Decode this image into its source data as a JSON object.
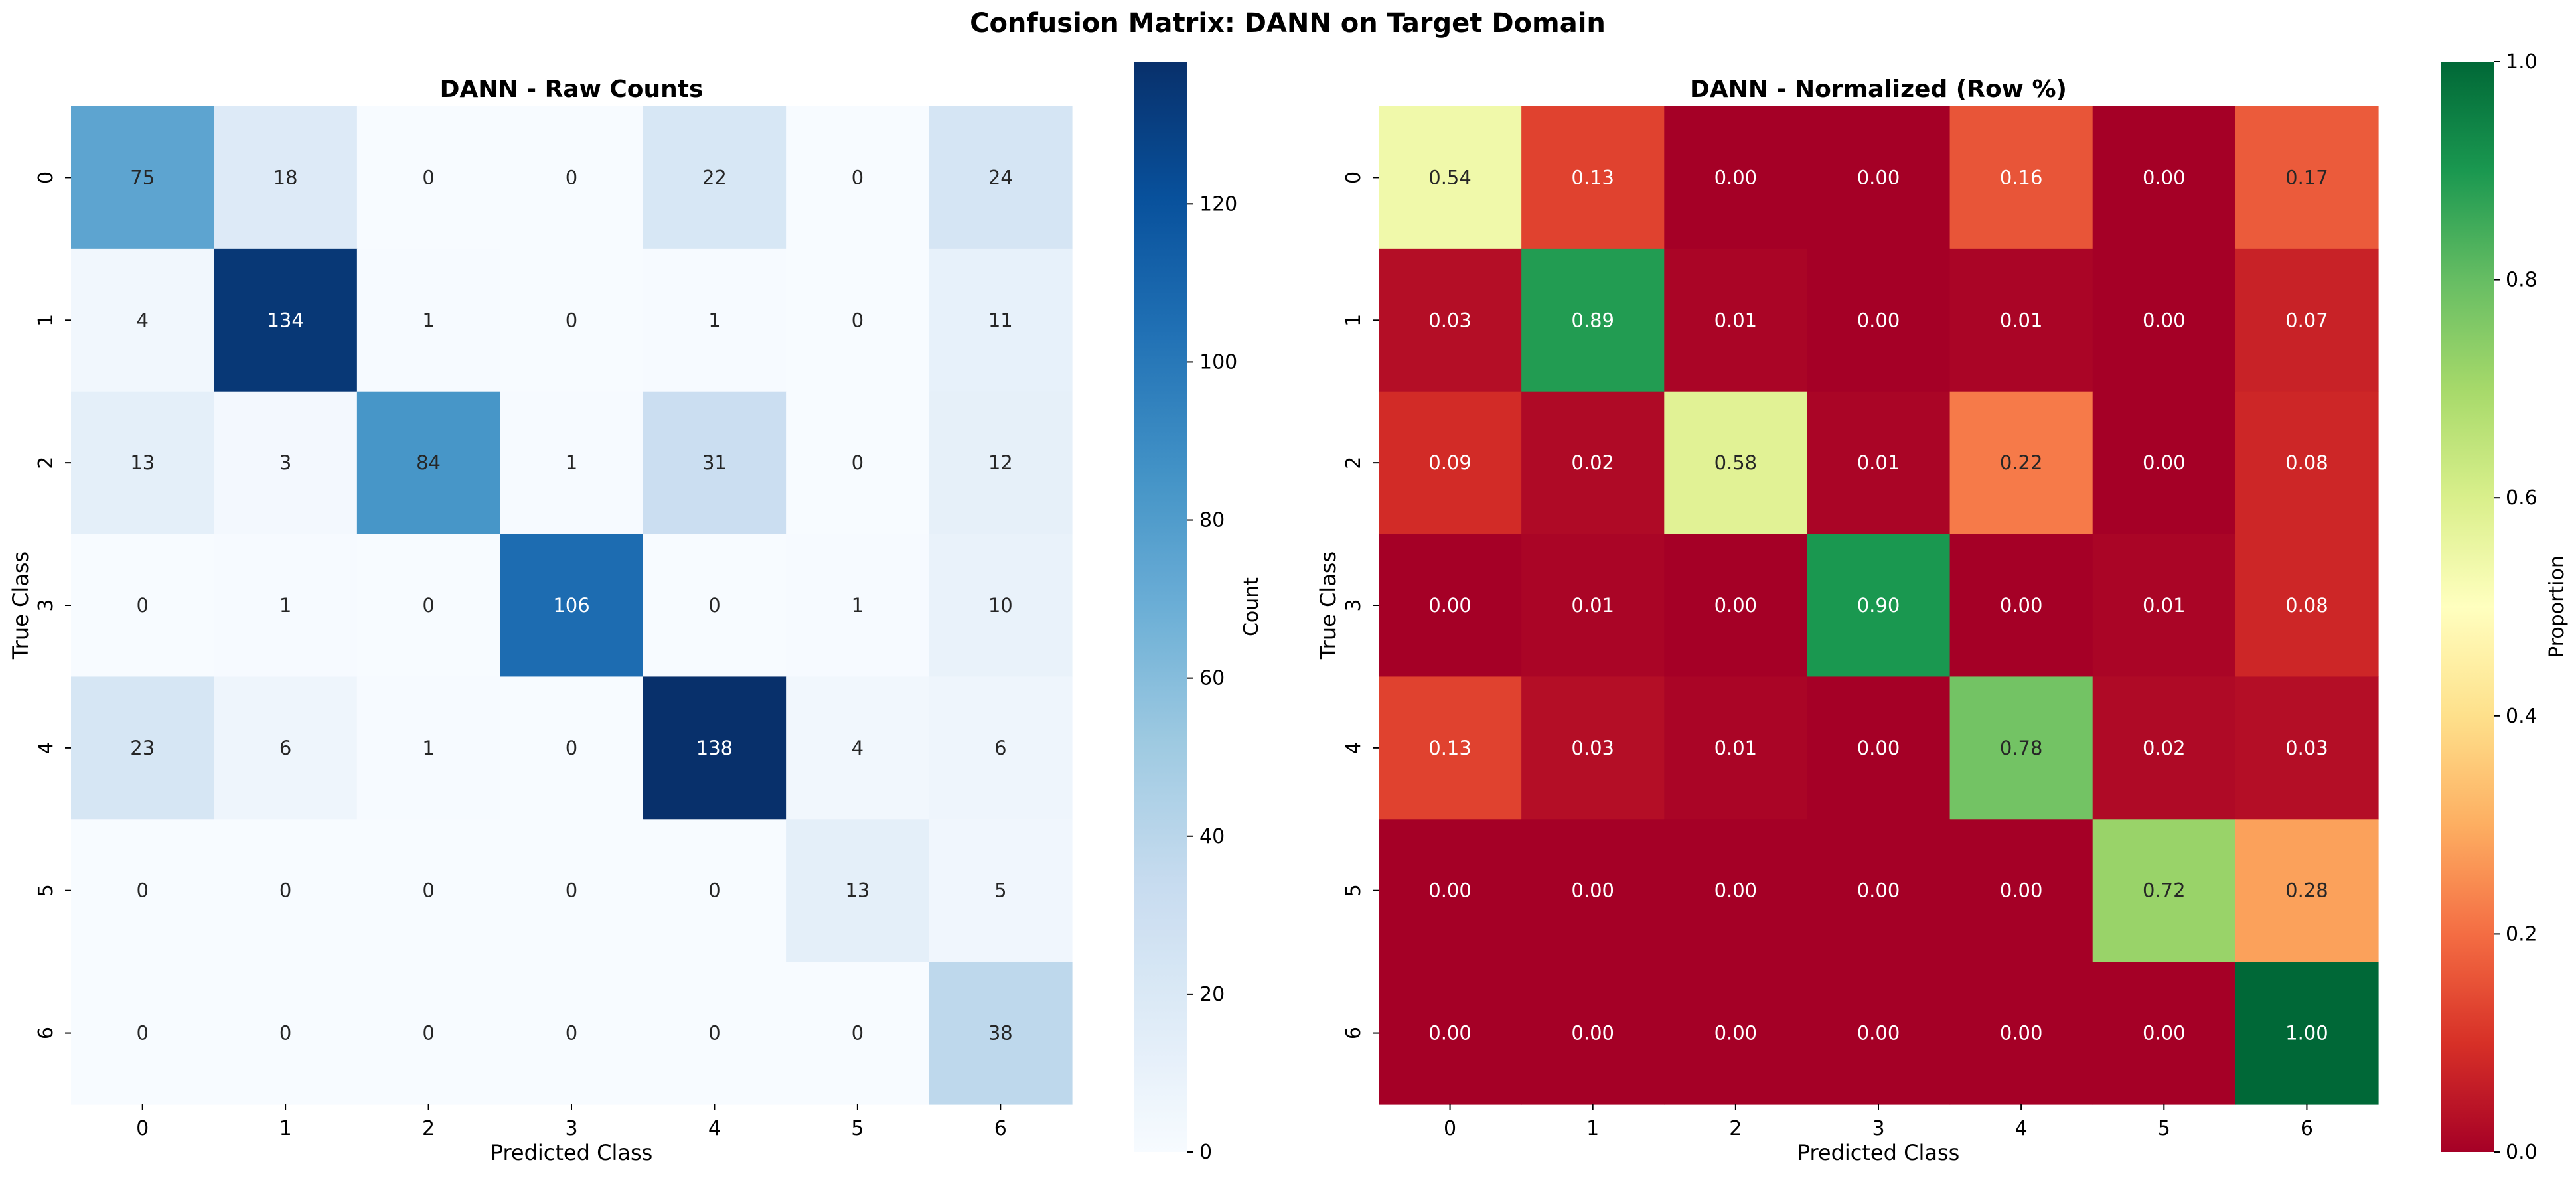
{
  "figure": {
    "title": "Confusion Matrix: DANN on Target Domain"
  },
  "chart_data": [
    {
      "type": "heatmap",
      "title": "DANN - Raw Counts",
      "xlabel": "Predicted Class",
      "ylabel": "True Class",
      "x_categories": [
        "0",
        "1",
        "2",
        "3",
        "4",
        "5",
        "6"
      ],
      "y_categories": [
        "0",
        "1",
        "2",
        "3",
        "4",
        "5",
        "6"
      ],
      "values": [
        [
          75,
          18,
          0,
          0,
          22,
          0,
          24
        ],
        [
          4,
          134,
          1,
          0,
          1,
          0,
          11
        ],
        [
          13,
          3,
          84,
          1,
          31,
          0,
          12
        ],
        [
          0,
          1,
          0,
          106,
          0,
          1,
          10
        ],
        [
          23,
          6,
          1,
          0,
          138,
          4,
          6
        ],
        [
          0,
          0,
          0,
          0,
          0,
          13,
          5
        ],
        [
          0,
          0,
          0,
          0,
          0,
          0,
          38
        ]
      ],
      "value_format": "integer",
      "colormap": "Blues",
      "vmin": 0,
      "vmax": 138,
      "colorbar": {
        "label": "Count",
        "ticks": [
          0,
          20,
          40,
          60,
          80,
          100,
          120
        ],
        "tick_labels": [
          "0",
          "20",
          "40",
          "60",
          "80",
          "100",
          "120"
        ]
      }
    },
    {
      "type": "heatmap",
      "title": "DANN - Normalized (Row %)",
      "xlabel": "Predicted Class",
      "ylabel": "True Class",
      "x_categories": [
        "0",
        "1",
        "2",
        "3",
        "4",
        "5",
        "6"
      ],
      "y_categories": [
        "0",
        "1",
        "2",
        "3",
        "4",
        "5",
        "6"
      ],
      "values": [
        [
          0.54,
          0.13,
          0.0,
          0.0,
          0.16,
          0.0,
          0.17
        ],
        [
          0.03,
          0.89,
          0.01,
          0.0,
          0.01,
          0.0,
          0.07
        ],
        [
          0.09,
          0.02,
          0.58,
          0.01,
          0.22,
          0.0,
          0.08
        ],
        [
          0.0,
          0.01,
          0.0,
          0.9,
          0.0,
          0.01,
          0.08
        ],
        [
          0.13,
          0.03,
          0.01,
          0.0,
          0.78,
          0.02,
          0.03
        ],
        [
          0.0,
          0.0,
          0.0,
          0.0,
          0.0,
          0.72,
          0.28
        ],
        [
          0.0,
          0.0,
          0.0,
          0.0,
          0.0,
          0.0,
          1.0
        ]
      ],
      "value_format": "2f",
      "colormap": "RdYlGn",
      "vmin": 0,
      "vmax": 1,
      "colorbar": {
        "label": "Proportion",
        "ticks": [
          0,
          0.2,
          0.4,
          0.6,
          0.8,
          1.0
        ],
        "tick_labels": [
          "0.0",
          "0.2",
          "0.4",
          "0.6",
          "0.8",
          "1.0"
        ]
      }
    }
  ]
}
